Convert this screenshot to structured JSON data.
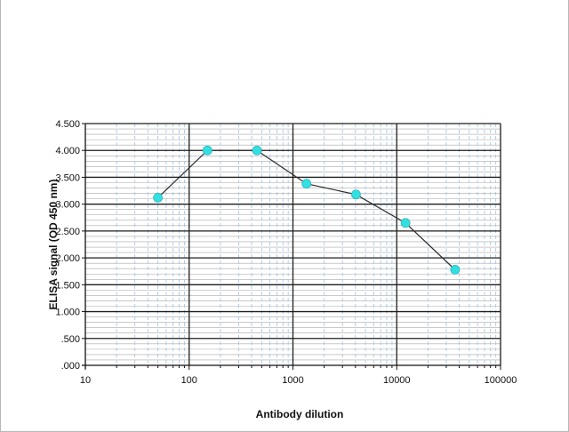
{
  "chart_data": {
    "type": "line",
    "title": "",
    "xlabel": "Antibody dilution",
    "ylabel": "ELISA signal (OD 450 nm)",
    "x_scale": "log",
    "xlim": [
      10,
      100000
    ],
    "ylim": [
      0,
      4.5
    ],
    "grid": true,
    "legend": "none",
    "x_tick_labels": [
      "10",
      "100",
      "1000",
      "10000",
      "100000"
    ],
    "y_tick_labels": [
      ".000",
      ".500",
      "1.000",
      "1.500",
      "2.000",
      "2.500",
      "3.000",
      "3.500",
      "4.000",
      "4.500"
    ],
    "series": [
      {
        "x": [
          50,
          150,
          450,
          1350,
          4050,
          12150,
          36450
        ],
        "y": [
          3.12,
          4.0,
          4.0,
          3.38,
          3.18,
          2.65,
          1.78
        ],
        "line_color": "#2b2b2b",
        "marker_color": "#33e0e0"
      }
    ]
  }
}
